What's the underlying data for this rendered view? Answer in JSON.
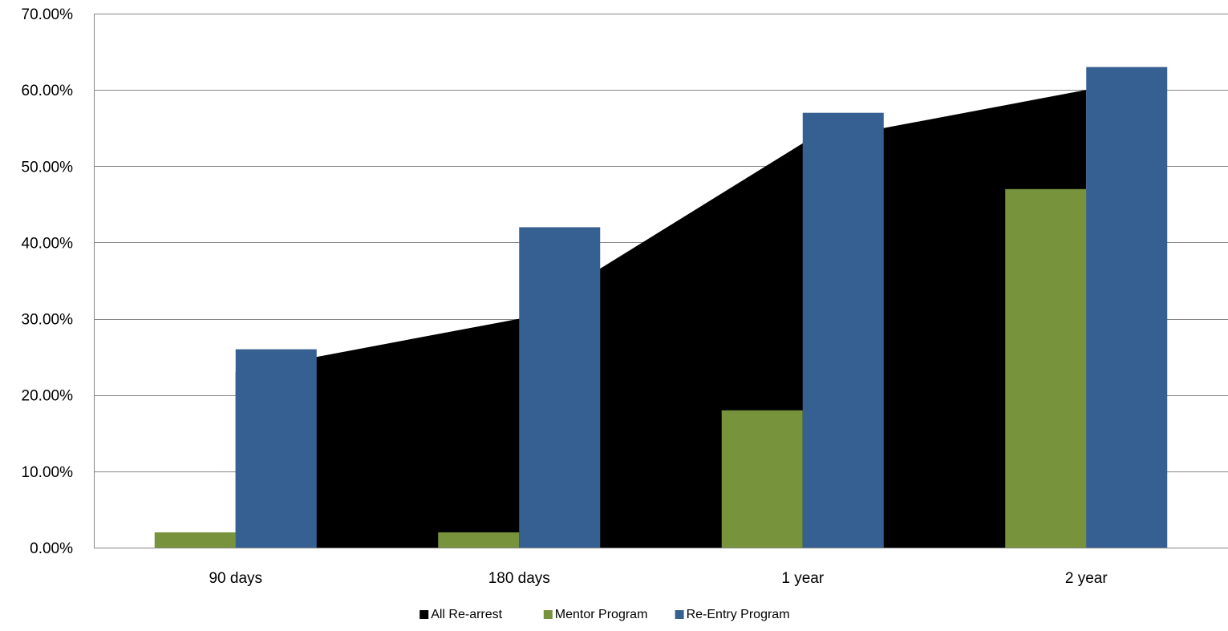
{
  "chart_data": {
    "type": "bar",
    "title": "",
    "xlabel": "",
    "ylabel": "",
    "categories": [
      "90 days",
      "180 days",
      "1 year",
      "2 year"
    ],
    "ylim": [
      0,
      0.7
    ],
    "yticks": [
      0,
      0.1,
      0.2,
      0.3,
      0.4,
      0.5,
      0.6,
      0.7
    ],
    "ytick_labels": [
      "0.00%",
      "10.00%",
      "20.00%",
      "30.00%",
      "40.00%",
      "50.00%",
      "60.00%",
      "70.00%"
    ],
    "grid": true,
    "legend_position": "bottom",
    "series": [
      {
        "name": "All Re-arrest",
        "kind": "area",
        "color": "#000000",
        "values": [
          0.23,
          0.3,
          0.53,
          0.6
        ]
      },
      {
        "name": "Mentor Program",
        "kind": "bar",
        "color": "#77933C",
        "values": [
          0.02,
          0.02,
          0.18,
          0.47
        ]
      },
      {
        "name": "Re-Entry Program",
        "kind": "bar",
        "color": "#376092",
        "values": [
          0.26,
          0.42,
          0.57,
          0.63
        ]
      }
    ]
  }
}
